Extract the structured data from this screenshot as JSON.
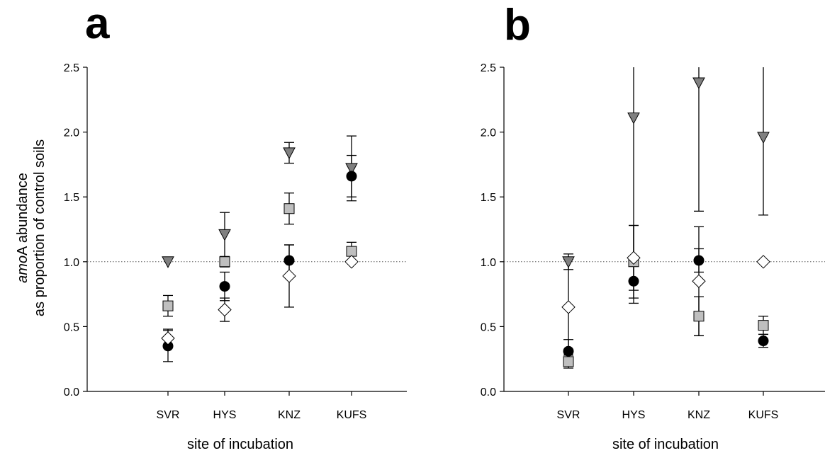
{
  "ylabel_line1_italic": "amo",
  "ylabel_line1_rest": "A abundance",
  "ylabel_line2": "as proportion of control soils",
  "reference_line": 1.0,
  "marker_styles": [
    {
      "marker": "triangle-down",
      "fill": "#808080"
    },
    {
      "marker": "square",
      "fill": "#bfbfbf"
    },
    {
      "marker": "circle",
      "fill": "#000000"
    },
    {
      "marker": "diamond",
      "fill": "#ffffff"
    }
  ],
  "chart_data": [
    {
      "panel": "a",
      "type": "scatter",
      "categories": [
        "SVR",
        "HYS",
        "KNZ",
        "KUFS"
      ],
      "xlabel": "site of incubation",
      "ylabel": "amoA abundance as proportion of control soils",
      "ylim": [
        0,
        2.5
      ],
      "yticks": [
        "0.0",
        "0.5",
        "1.0",
        "1.5",
        "2.0",
        "2.5"
      ],
      "series": [
        {
          "marker": "triangle-down",
          "color": "#808080",
          "values": [
            1.0,
            1.21,
            1.84,
            1.72
          ],
          "errors": [
            0,
            0.17,
            0.08,
            0.25
          ]
        },
        {
          "marker": "square",
          "color": "#bfbfbf",
          "values": [
            0.66,
            1.0,
            1.41,
            1.08
          ],
          "errors": [
            0.08,
            0.04,
            0.12,
            0.07
          ]
        },
        {
          "marker": "circle",
          "color": "#000000",
          "values": [
            0.35,
            0.81,
            1.01,
            1.66
          ],
          "errors": [
            0.12,
            0.11,
            0.12,
            0.16
          ]
        },
        {
          "marker": "diamond",
          "color": "#ffffff",
          "values": [
            0.41,
            0.63,
            0.89,
            1.0
          ],
          "errors": [
            0.07,
            0.09,
            0.24,
            0
          ]
        }
      ]
    },
    {
      "panel": "b",
      "type": "scatter",
      "categories": [
        "SVR",
        "HYS",
        "KNZ",
        "KUFS"
      ],
      "xlabel": "site of incubation",
      "ylabel": "",
      "ylim": [
        0,
        2.5
      ],
      "yticks": [
        "0.0",
        "0.5",
        "1.0",
        "1.5",
        "2.0",
        "2.5"
      ],
      "series": [
        {
          "marker": "triangle-down",
          "color": "#808080",
          "values": [
            1.0,
            2.11,
            2.38,
            1.96
          ],
          "errors": [
            0.06,
            1.1,
            0.99,
            0.6
          ]
        },
        {
          "marker": "square",
          "color": "#bfbfbf",
          "values": [
            0.23,
            1.0,
            0.58,
            0.51
          ],
          "errors": [
            0.05,
            0.28,
            0.15,
            0.07
          ]
        },
        {
          "marker": "circle",
          "color": "#000000",
          "values": [
            0.31,
            0.85,
            1.01,
            0.39
          ],
          "errors": [
            0.09,
            0.17,
            0.09,
            0.05
          ]
        },
        {
          "marker": "diamond",
          "color": "#ffffff",
          "values": [
            0.65,
            1.03,
            0.85,
            1.0
          ],
          "errors": [
            0.37,
            0.25,
            0.42,
            0
          ]
        }
      ]
    }
  ]
}
